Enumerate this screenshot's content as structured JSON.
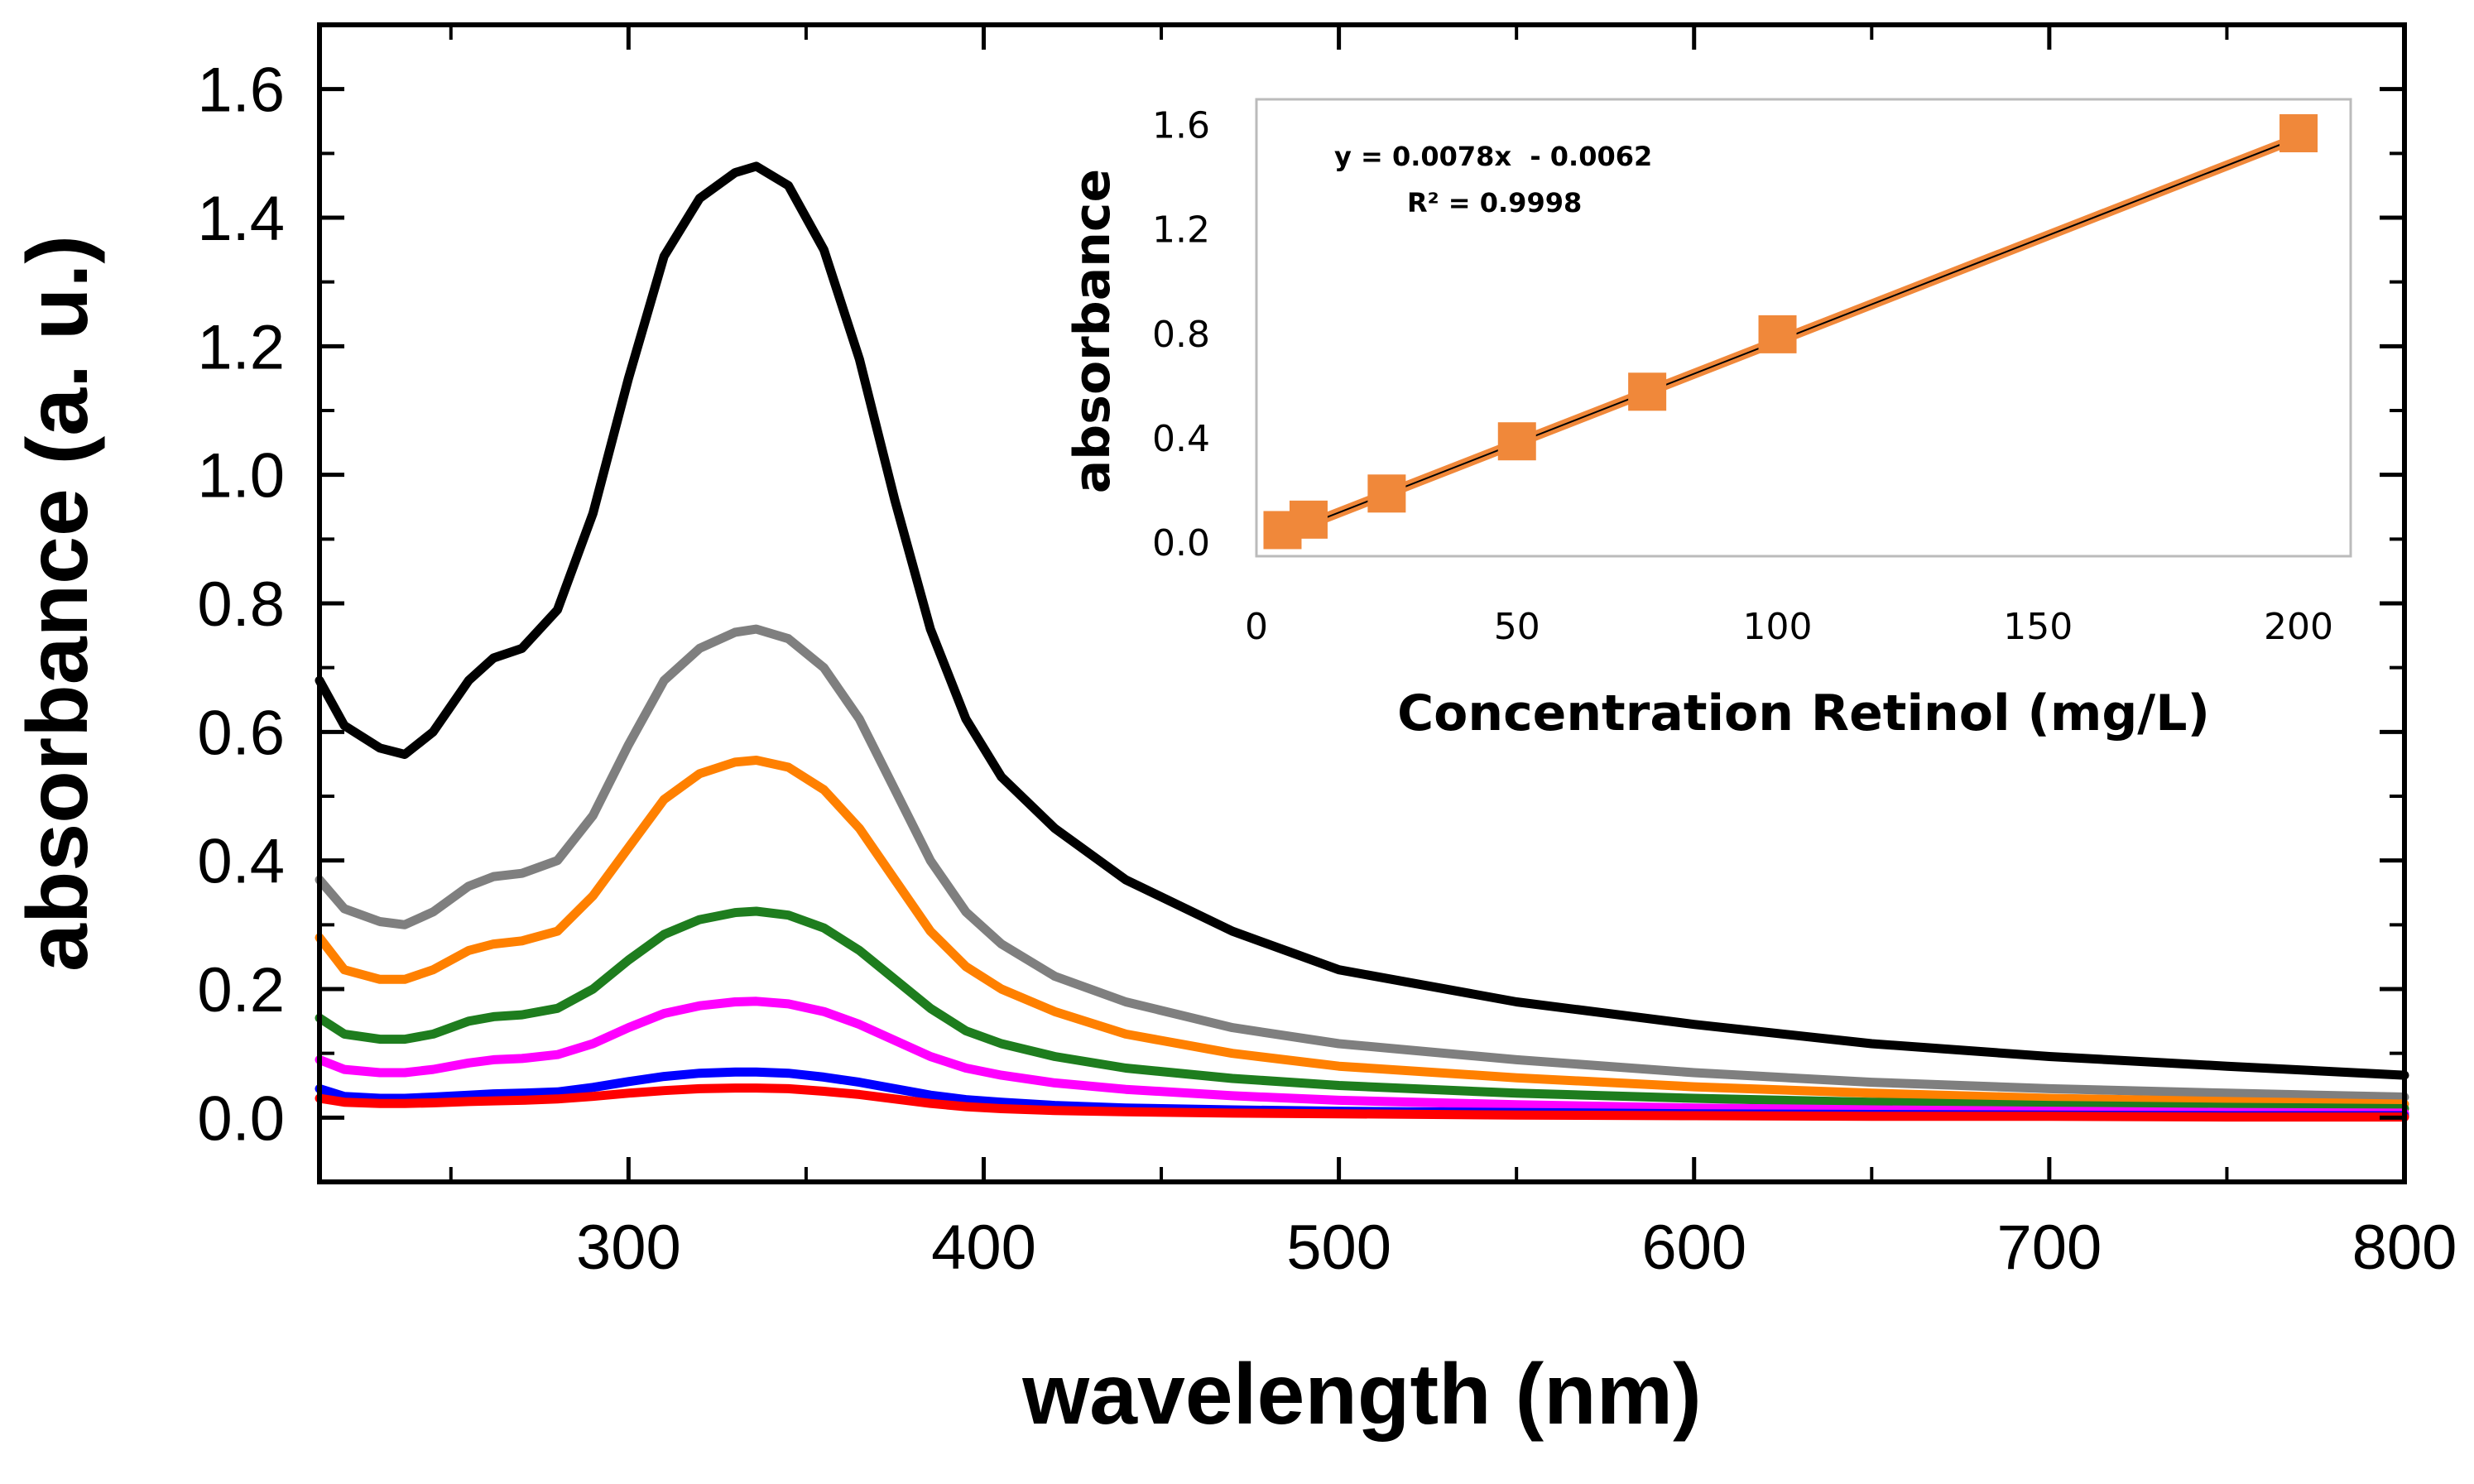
{
  "chart_data": [
    {
      "type": "line",
      "title": "",
      "xlabel": "wavelength (nm)",
      "ylabel": "absorbance (a.  u.)",
      "xlim": [
        213,
        800
      ],
      "ylim": [
        -0.1,
        1.7
      ],
      "xticks": [
        300,
        400,
        500,
        600,
        700,
        800
      ],
      "xtick_labels": [
        "300",
        "400",
        "500",
        "600",
        "700",
        "800"
      ],
      "yticks": [
        0.0,
        0.2,
        0.4,
        0.6,
        0.8,
        1.0,
        1.2,
        1.4,
        1.6
      ],
      "ytick_labels": [
        "0.0",
        "0.2",
        "0.4",
        "0.6",
        "0.8",
        "1.0",
        "1.2",
        "1.4",
        "1.6"
      ],
      "grid": false,
      "x": [
        213,
        220,
        230,
        237,
        245,
        255,
        262,
        270,
        280,
        290,
        300,
        310,
        320,
        330,
        336,
        345,
        355,
        365,
        375,
        385,
        395,
        405,
        420,
        440,
        470,
        500,
        550,
        600,
        650,
        700,
        750,
        800
      ],
      "series": [
        {
          "name": "black",
          "color": "#000000",
          "values": [
            0.68,
            0.61,
            0.575,
            0.565,
            0.6,
            0.68,
            0.715,
            0.73,
            0.79,
            0.94,
            1.15,
            1.34,
            1.43,
            1.47,
            1.48,
            1.45,
            1.35,
            1.18,
            0.96,
            0.76,
            0.62,
            0.53,
            0.45,
            0.37,
            0.29,
            0.23,
            0.18,
            0.145,
            0.115,
            0.095,
            0.08,
            0.066
          ]
        },
        {
          "name": "gray",
          "color": "#7f7f7f",
          "values": [
            0.37,
            0.325,
            0.305,
            0.3,
            0.32,
            0.36,
            0.375,
            0.38,
            0.4,
            0.47,
            0.58,
            0.68,
            0.73,
            0.755,
            0.76,
            0.745,
            0.7,
            0.62,
            0.51,
            0.4,
            0.32,
            0.27,
            0.22,
            0.18,
            0.14,
            0.115,
            0.09,
            0.07,
            0.055,
            0.045,
            0.038,
            0.032
          ]
        },
        {
          "name": "orange",
          "color": "#ff8000",
          "values": [
            0.28,
            0.23,
            0.215,
            0.215,
            0.23,
            0.26,
            0.27,
            0.275,
            0.29,
            0.345,
            0.42,
            0.495,
            0.535,
            0.553,
            0.556,
            0.545,
            0.51,
            0.45,
            0.37,
            0.29,
            0.235,
            0.2,
            0.165,
            0.13,
            0.1,
            0.08,
            0.062,
            0.048,
            0.038,
            0.03,
            0.025,
            0.021
          ]
        },
        {
          "name": "green",
          "color": "#1e7d1e",
          "values": [
            0.155,
            0.13,
            0.122,
            0.122,
            0.13,
            0.15,
            0.157,
            0.16,
            0.17,
            0.2,
            0.245,
            0.285,
            0.308,
            0.319,
            0.321,
            0.315,
            0.295,
            0.26,
            0.215,
            0.17,
            0.135,
            0.115,
            0.095,
            0.077,
            0.061,
            0.05,
            0.038,
            0.03,
            0.024,
            0.019,
            0.016,
            0.014
          ]
        },
        {
          "name": "magenta",
          "color": "#ff00ff",
          "values": [
            0.09,
            0.075,
            0.07,
            0.07,
            0.075,
            0.085,
            0.09,
            0.092,
            0.098,
            0.115,
            0.14,
            0.162,
            0.174,
            0.18,
            0.181,
            0.177,
            0.165,
            0.145,
            0.12,
            0.095,
            0.077,
            0.066,
            0.054,
            0.044,
            0.034,
            0.027,
            0.02,
            0.015,
            0.012,
            0.01,
            0.008,
            0.007
          ]
        },
        {
          "name": "blue",
          "color": "#0000ff",
          "values": [
            0.045,
            0.033,
            0.03,
            0.03,
            0.032,
            0.035,
            0.037,
            0.038,
            0.04,
            0.047,
            0.056,
            0.064,
            0.069,
            0.071,
            0.071,
            0.069,
            0.063,
            0.055,
            0.045,
            0.035,
            0.028,
            0.024,
            0.019,
            0.015,
            0.012,
            0.01,
            0.008,
            0.006,
            0.005,
            0.004,
            0.003,
            0.003
          ]
        },
        {
          "name": "red",
          "color": "#ff0000",
          "values": [
            0.03,
            0.024,
            0.022,
            0.022,
            0.023,
            0.025,
            0.026,
            0.027,
            0.029,
            0.033,
            0.038,
            0.042,
            0.045,
            0.046,
            0.046,
            0.045,
            0.041,
            0.036,
            0.029,
            0.022,
            0.017,
            0.014,
            0.011,
            0.009,
            0.007,
            0.006,
            0.004,
            0.003,
            0.002,
            0.002,
            0.001,
            0.001
          ]
        }
      ]
    },
    {
      "type": "scatter",
      "title": "",
      "xlabel": "Concentration Retinol (mg/L)",
      "ylabel": "absorbance",
      "xlim": [
        0,
        210
      ],
      "ylim": [
        -0.05,
        1.7
      ],
      "xticks": [
        0,
        50,
        100,
        150,
        200
      ],
      "xtick_labels": [
        "0",
        "50",
        "100",
        "150",
        "200"
      ],
      "yticks": [
        0.0,
        0.4,
        0.8,
        1.2,
        1.6
      ],
      "ytick_labels": [
        "0.0",
        "0.4",
        "0.8",
        "1.2",
        "1.6"
      ],
      "grid": false,
      "marker_color": "#f0883a",
      "fit_line_color": "#f0883a",
      "trendline_color": "#000000",
      "points": {
        "x": [
          5,
          10,
          25,
          50,
          75,
          100,
          200
        ],
        "y": [
          0.05,
          0.09,
          0.19,
          0.39,
          0.58,
          0.8,
          1.57
        ]
      },
      "fit": {
        "slope": 0.0078,
        "intercept": -0.0062,
        "x_range": [
          6,
          198
        ]
      },
      "annotations": {
        "equation": "y = 0.0078x  - 0.0062",
        "r_squared": "R² = 0.9998"
      }
    }
  ]
}
